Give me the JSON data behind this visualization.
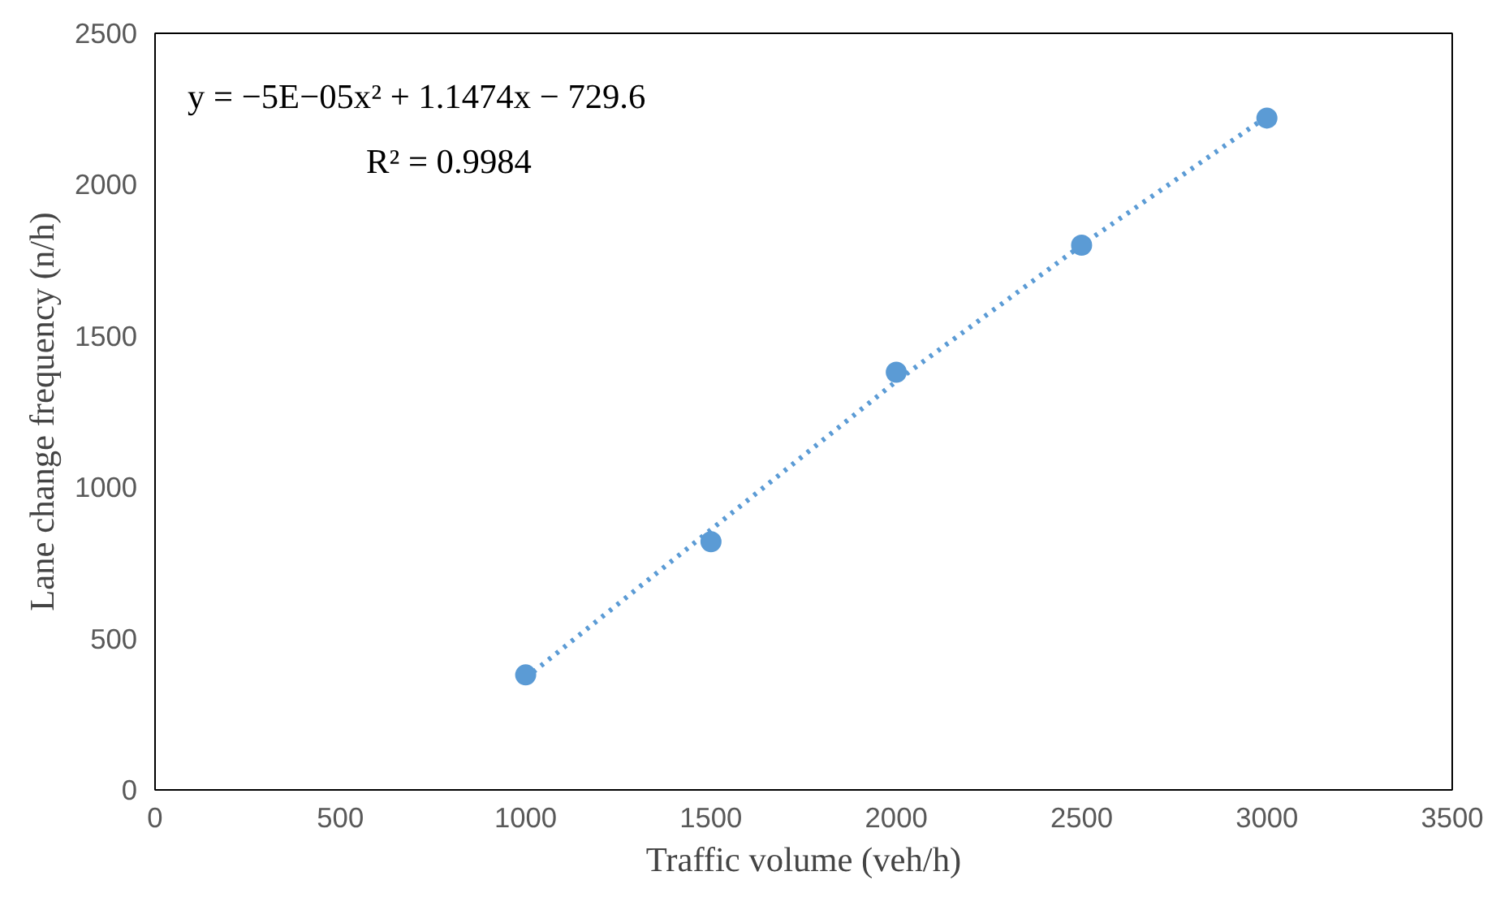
{
  "chart_data": {
    "type": "scatter",
    "xlabel": "Traffic volume (veh/h)",
    "ylabel": "Lane change frequency (n/h)",
    "x": [
      1000,
      1500,
      2000,
      2500,
      3000
    ],
    "series": [
      {
        "color": "#5b9bd5",
        "marker": "circle",
        "values": [
          380,
          820,
          1380,
          1800,
          2220
        ]
      },
      {
        "type": "line",
        "color": "#5b9bd5",
        "line_style": "dotted",
        "x": [
          1000,
          1500,
          2000,
          2500,
          3000
        ],
        "values": [
          370,
          860,
          1350,
          1800,
          2225
        ]
      }
    ],
    "annotations": [
      "y = −5E−05x² + 1.1474x − 729.6",
      "R² = 0.9984"
    ],
    "xlim": [
      0,
      3500
    ],
    "xticks": [
      0,
      500,
      1000,
      1500,
      2000,
      2500,
      3000,
      3500
    ],
    "ylim": [
      0,
      2500
    ],
    "yticks": [
      0,
      500,
      1000,
      1500,
      2000,
      2500
    ],
    "grid": false
  }
}
